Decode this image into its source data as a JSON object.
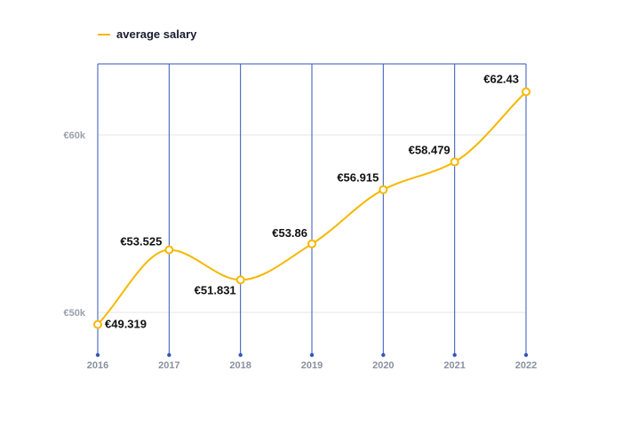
{
  "colors": {
    "series": "#F5B800",
    "axis": "#3355BB",
    "grid": "#E6E6E6",
    "tick_text": "#8A90A0"
  },
  "legend": {
    "label": "average salary",
    "placement": "top-left"
  },
  "chart_data": {
    "type": "line",
    "x": [
      "2016",
      "2017",
      "2018",
      "2019",
      "2020",
      "2021",
      "2022"
    ],
    "series": [
      {
        "name": "average salary",
        "values": [
          49319,
          53525,
          51831,
          53860,
          56915,
          58479,
          62430
        ],
        "labels": [
          "€49.319",
          "€53.525",
          "€51.831",
          "€53.86",
          "€56.915",
          "€58.479",
          "€62.43"
        ]
      }
    ],
    "yticks": [
      {
        "value": 50000,
        "label": "€50k"
      },
      {
        "value": 60000,
        "label": "€60k"
      }
    ],
    "ylim": [
      48000,
      64000
    ],
    "grid": true,
    "smooth": true
  }
}
